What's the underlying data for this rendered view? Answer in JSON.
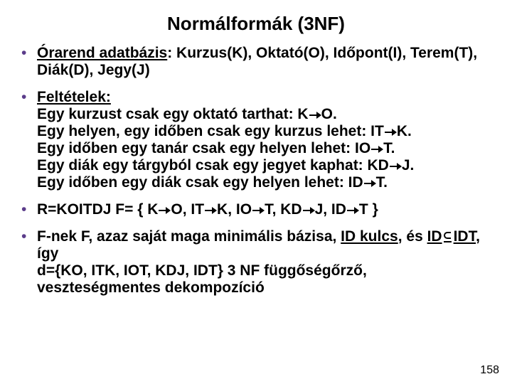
{
  "title": {
    "text": "Normálformák (3NF)",
    "fontsize": 26,
    "weight": "bold",
    "color": "#000000"
  },
  "body_fontsize": 21,
  "bullet_color": "#5b3c8a",
  "text_color": "#000000",
  "bullets": [
    {
      "runs": [
        {
          "t": "Órarend adatbázis",
          "u": true,
          "b": true
        },
        {
          "t": ": Kurzus(K), Oktató(O), Időpont(I), Terem(T), Diák(D), Jegy(J)",
          "b": true
        }
      ]
    },
    {
      "group": true,
      "lines": [
        [
          {
            "t": "Feltételek:",
            "u": true,
            "b": true
          }
        ],
        [
          {
            "t": "Egy kurzust csak egy oktató tarthat: K",
            "b": true
          },
          {
            "arrow": true
          },
          {
            "t": "O.",
            "b": true
          }
        ],
        [
          {
            "t": "Egy helyen, egy időben csak egy kurzus lehet: IT",
            "b": true
          },
          {
            "arrow": true
          },
          {
            "t": "K.",
            "b": true
          }
        ],
        [
          {
            "t": "Egy időben egy tanár csak egy helyen lehet: IO",
            "b": true
          },
          {
            "arrow": true
          },
          {
            "t": "T.",
            "b": true
          }
        ],
        [
          {
            "t": "Egy diák egy tárgyból csak egy jegyet kaphat: KD",
            "b": true
          },
          {
            "arrow": true
          },
          {
            "t": "J.",
            "b": true
          }
        ],
        [
          {
            "t": "Egy időben egy diák csak egy helyen lehet: ID",
            "b": true
          },
          {
            "arrow": true
          },
          {
            "t": "T.",
            "b": true
          }
        ]
      ]
    },
    {
      "runs": [
        {
          "t": "R=KOITDJ F= { K",
          "b": true
        },
        {
          "arrow": true
        },
        {
          "t": "O, IT",
          "b": true
        },
        {
          "arrow": true
        },
        {
          "t": "K, IO",
          "b": true
        },
        {
          "arrow": true
        },
        {
          "t": "T, KD",
          "b": true
        },
        {
          "arrow": true
        },
        {
          "t": "J, ID",
          "b": true
        },
        {
          "arrow": true
        },
        {
          "t": "T }",
          "b": true
        }
      ]
    },
    {
      "lines": [
        [
          {
            "t": "F-nek F, azaz saját maga minimális bázisa, ",
            "b": true
          },
          {
            "t": "ID kulcs",
            "b": true,
            "u": true
          },
          {
            "t": ", és ",
            "b": true
          },
          {
            "t": "ID",
            "b": true,
            "u": true
          },
          {
            "subset": true
          },
          {
            "t": "IDT",
            "b": true,
            "u": true
          },
          {
            "t": ", így",
            "b": true
          }
        ],
        [
          {
            "t": "d={KO, ITK, IOT, KDJ, IDT} 3 NF függőségőrző, veszteségmentes dekompozíció",
            "b": true
          }
        ]
      ]
    }
  ],
  "page_number": "158",
  "page_number_fontsize": 16
}
